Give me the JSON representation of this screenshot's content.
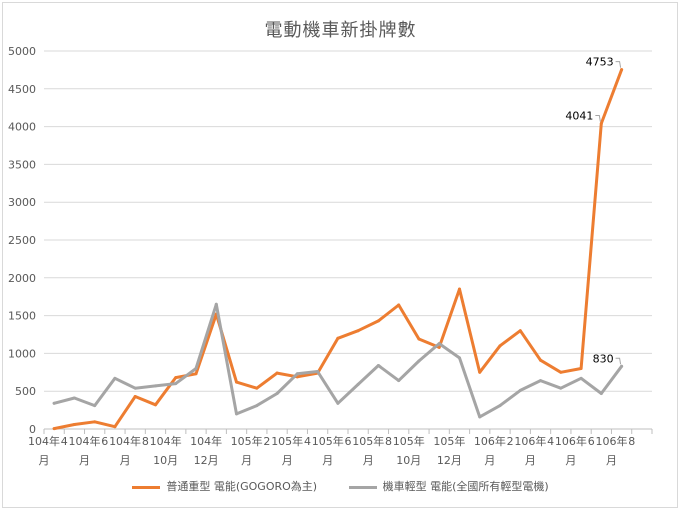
{
  "chart_data": {
    "type": "line",
    "title": "電動機車新掛牌數",
    "xlabel": "",
    "ylabel": "",
    "ylim": [
      0,
      5000
    ],
    "yticks": [
      0,
      500,
      1000,
      1500,
      2000,
      2500,
      3000,
      3500,
      4000,
      4500,
      5000
    ],
    "grid": true,
    "legend_position": "bottom",
    "x_tick_labels": [
      [
        "104年",
        "月"
      ],
      [
        "4",
        ""
      ],
      [
        "104年",
        "月"
      ],
      [
        "6",
        ""
      ],
      [
        "104年",
        "月"
      ],
      [
        "8",
        ""
      ],
      [
        "104年",
        "10月"
      ],
      [
        "",
        ""
      ],
      [
        "104年",
        "12月"
      ],
      [
        "",
        ""
      ],
      [
        "105年",
        "月"
      ],
      [
        "2",
        ""
      ],
      [
        "105年",
        "月"
      ],
      [
        "4",
        ""
      ],
      [
        "105年",
        "月"
      ],
      [
        "6",
        ""
      ],
      [
        "105年",
        "月"
      ],
      [
        "8",
        ""
      ],
      [
        "105年",
        "10月"
      ],
      [
        "",
        ""
      ],
      [
        "105年",
        "12月"
      ],
      [
        "",
        ""
      ],
      [
        "106年",
        "月"
      ],
      [
        "2",
        ""
      ],
      [
        "106年",
        "月"
      ],
      [
        "4",
        ""
      ],
      [
        "106年",
        "月"
      ],
      [
        "6",
        ""
      ],
      [
        "106年",
        "月"
      ],
      [
        "8",
        ""
      ]
    ],
    "series": [
      {
        "name": "普通重型 電能(GOGORO為主)",
        "color": "#ed7d31",
        "values": [
          5,
          60,
          95,
          30,
          430,
          320,
          680,
          730,
          1520,
          620,
          540,
          740,
          690,
          740,
          1200,
          1300,
          1430,
          1640,
          1190,
          1080,
          1850,
          750,
          1100,
          1300,
          910,
          750,
          800,
          4041,
          4753
        ]
      },
      {
        "name": "機車輕型 電能(全國所有輕型電機)",
        "color": "#a5a5a5",
        "values": [
          340,
          410,
          310,
          670,
          540,
          570,
          600,
          800,
          1650,
          200,
          310,
          470,
          730,
          760,
          340,
          590,
          840,
          640,
          900,
          1130,
          940,
          160,
          310,
          510,
          640,
          540,
          670,
          470,
          830
        ]
      }
    ],
    "data_labels": [
      {
        "series": 0,
        "index": 27,
        "text": "4041"
      },
      {
        "series": 0,
        "index": 28,
        "text": "4753"
      },
      {
        "series": 1,
        "index": 28,
        "text": "830"
      }
    ]
  }
}
